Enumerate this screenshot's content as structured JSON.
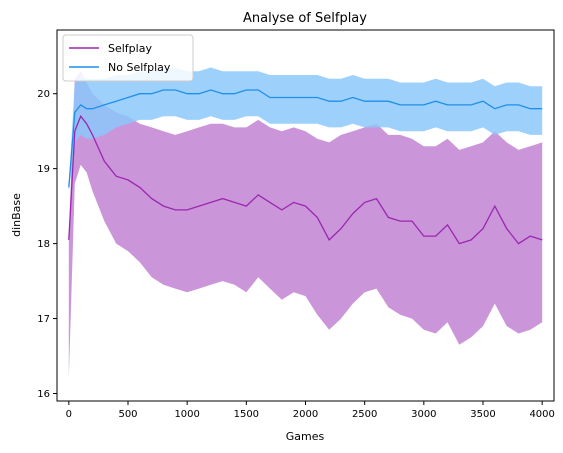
{
  "chart_data": {
    "type": "line",
    "title": "Analyse of Selfplay",
    "xlabel": "Games",
    "ylabel": "dinBase",
    "xlim": [
      -100,
      4100
    ],
    "ylim": [
      15.9,
      20.85
    ],
    "xticks": [
      0,
      500,
      1000,
      1500,
      2000,
      2500,
      3000,
      3500,
      4000
    ],
    "yticks": [
      16,
      17,
      18,
      19,
      20
    ],
    "legend_position": "upper-left",
    "grid": false,
    "series": [
      {
        "name": "Selfplay",
        "line_color": "#9b27b0",
        "band_color": "#c58ad6",
        "x": [
          0,
          50,
          100,
          150,
          200,
          300,
          400,
          500,
          600,
          700,
          800,
          900,
          1000,
          1100,
          1200,
          1300,
          1400,
          1500,
          1600,
          1700,
          1800,
          1900,
          2000,
          2100,
          2200,
          2300,
          2400,
          2500,
          2600,
          2700,
          2800,
          2900,
          3000,
          3100,
          3200,
          3300,
          3400,
          3500,
          3600,
          3700,
          3800,
          3900,
          4000
        ],
        "y": [
          18.05,
          19.5,
          19.7,
          19.6,
          19.45,
          19.1,
          18.9,
          18.85,
          18.75,
          18.6,
          18.5,
          18.45,
          18.45,
          18.5,
          18.55,
          18.6,
          18.55,
          18.5,
          18.65,
          18.55,
          18.45,
          18.55,
          18.5,
          18.35,
          18.05,
          18.2,
          18.4,
          18.55,
          18.6,
          18.35,
          18.3,
          18.3,
          18.1,
          18.1,
          18.25,
          18.0,
          18.05,
          18.2,
          18.5,
          18.2,
          18.0,
          18.1,
          18.05
        ],
        "upper": [
          18.1,
          20.2,
          20.3,
          20.15,
          20.0,
          19.85,
          19.75,
          19.7,
          19.6,
          19.55,
          19.5,
          19.45,
          19.5,
          19.55,
          19.6,
          19.6,
          19.55,
          19.55,
          19.65,
          19.55,
          19.5,
          19.55,
          19.5,
          19.4,
          19.35,
          19.45,
          19.5,
          19.55,
          19.6,
          19.45,
          19.45,
          19.4,
          19.3,
          19.3,
          19.4,
          19.25,
          19.3,
          19.35,
          19.5,
          19.35,
          19.25,
          19.3,
          19.35
        ],
        "lower": [
          16.2,
          18.8,
          19.05,
          18.95,
          18.7,
          18.3,
          18.0,
          17.9,
          17.75,
          17.55,
          17.45,
          17.4,
          17.35,
          17.4,
          17.45,
          17.5,
          17.45,
          17.35,
          17.55,
          17.4,
          17.25,
          17.35,
          17.3,
          17.05,
          16.85,
          17.0,
          17.2,
          17.35,
          17.4,
          17.15,
          17.05,
          17.0,
          16.85,
          16.8,
          16.95,
          16.65,
          16.75,
          16.9,
          17.2,
          16.9,
          16.8,
          16.85,
          16.95
        ]
      },
      {
        "name": "No Selfplay",
        "line_color": "#1f8fea",
        "band_color": "#8cc8fa",
        "x": [
          0,
          50,
          100,
          150,
          200,
          300,
          400,
          500,
          600,
          700,
          800,
          900,
          1000,
          1100,
          1200,
          1300,
          1400,
          1500,
          1600,
          1700,
          1800,
          1900,
          2000,
          2100,
          2200,
          2300,
          2400,
          2500,
          2600,
          2700,
          2800,
          2900,
          3000,
          3100,
          3200,
          3300,
          3400,
          3500,
          3600,
          3700,
          3800,
          3900,
          4000
        ],
        "y": [
          18.75,
          19.75,
          19.85,
          19.8,
          19.8,
          19.85,
          19.9,
          19.95,
          20.0,
          20.0,
          20.05,
          20.05,
          20.0,
          20.0,
          20.05,
          20.0,
          20.0,
          20.05,
          20.05,
          19.95,
          19.95,
          19.95,
          19.95,
          19.95,
          19.9,
          19.9,
          19.95,
          19.9,
          19.9,
          19.9,
          19.85,
          19.85,
          19.85,
          19.9,
          19.85,
          19.85,
          19.85,
          19.9,
          19.8,
          19.85,
          19.85,
          19.8,
          19.8
        ],
        "upper": [
          18.8,
          20.15,
          20.25,
          20.2,
          20.2,
          20.2,
          20.25,
          20.25,
          20.3,
          20.3,
          20.35,
          20.35,
          20.3,
          20.3,
          20.35,
          20.3,
          20.3,
          20.3,
          20.3,
          20.25,
          20.25,
          20.25,
          20.25,
          20.25,
          20.2,
          20.2,
          20.25,
          20.2,
          20.2,
          20.2,
          20.15,
          20.15,
          20.15,
          20.2,
          20.15,
          20.15,
          20.15,
          20.2,
          20.1,
          20.15,
          20.15,
          20.1,
          20.1
        ],
        "lower": [
          18.7,
          19.35,
          19.45,
          19.4,
          19.4,
          19.45,
          19.55,
          19.6,
          19.65,
          19.65,
          19.7,
          19.7,
          19.65,
          19.65,
          19.7,
          19.65,
          19.65,
          19.7,
          19.7,
          19.6,
          19.6,
          19.6,
          19.6,
          19.6,
          19.55,
          19.55,
          19.6,
          19.55,
          19.55,
          19.55,
          19.5,
          19.5,
          19.5,
          19.55,
          19.5,
          19.5,
          19.5,
          19.55,
          19.45,
          19.5,
          19.5,
          19.45,
          19.45
        ]
      }
    ]
  }
}
